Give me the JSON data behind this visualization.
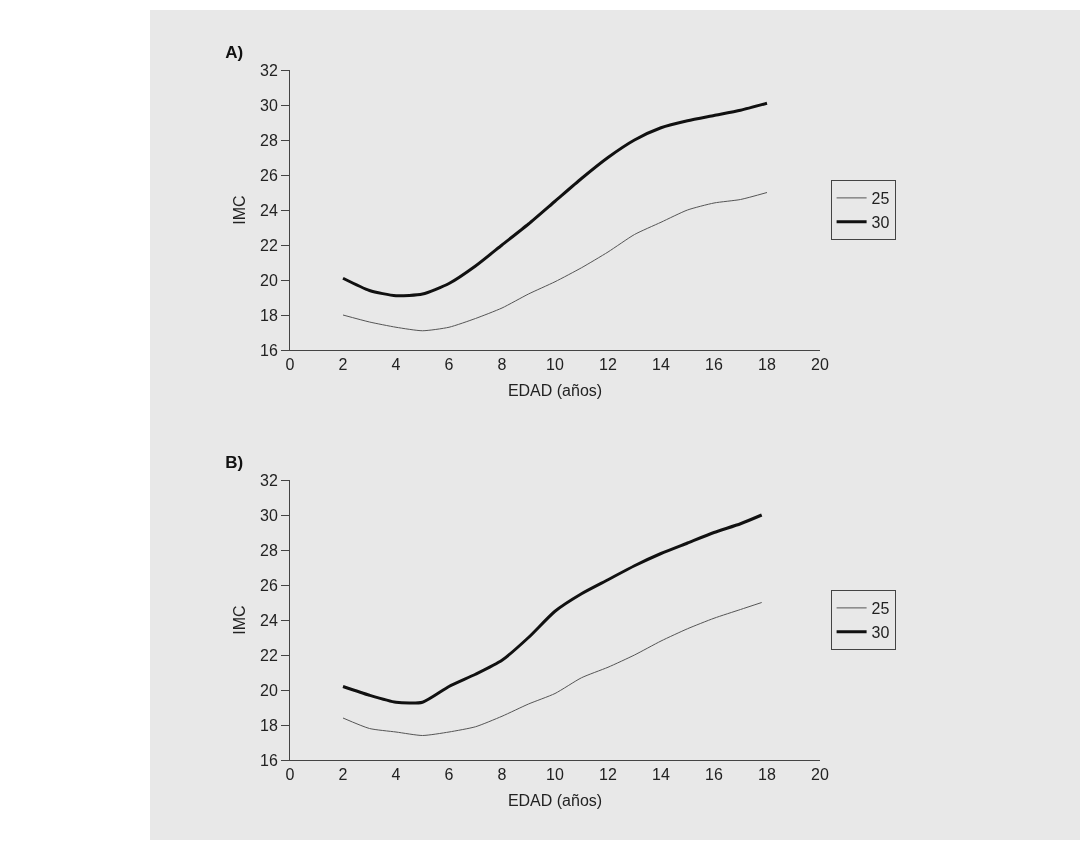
{
  "chart_data": [
    {
      "type": "line",
      "title": "A)",
      "xlabel": "EDAD (años)",
      "ylabel": "IMC",
      "x": [
        2,
        3,
        4,
        5,
        6,
        7,
        8,
        9,
        10,
        11,
        12,
        13,
        14,
        15,
        16,
        17,
        18
      ],
      "series": [
        {
          "name": "25",
          "color": "#555555",
          "values": [
            18.0,
            17.6,
            17.3,
            17.1,
            17.3,
            17.8,
            18.4,
            19.2,
            19.9,
            20.7,
            21.6,
            22.6,
            23.3,
            24.0,
            24.4,
            24.6,
            25.0
          ]
        },
        {
          "name": "30",
          "color": "#111111",
          "values": [
            20.1,
            19.4,
            19.1,
            19.2,
            19.8,
            20.8,
            22.0,
            23.2,
            24.5,
            25.8,
            27.0,
            28.0,
            28.7,
            29.1,
            29.4,
            29.7,
            30.1
          ]
        }
      ],
      "xlim": [
        0,
        20
      ],
      "xticks": [
        0,
        2,
        4,
        6,
        8,
        10,
        12,
        14,
        16,
        18,
        20
      ],
      "ylim": [
        16,
        32
      ],
      "yticks": [
        16,
        18,
        20,
        22,
        24,
        26,
        28,
        30,
        32
      ],
      "legend": "right"
    },
    {
      "type": "line",
      "title": "B)",
      "xlabel": "EDAD (años)",
      "ylabel": "IMC",
      "x": [
        2,
        3,
        4,
        5,
        6,
        7,
        8,
        9,
        10,
        11,
        12,
        13,
        14,
        15,
        16,
        17,
        17.8
      ],
      "series": [
        {
          "name": "25",
          "color": "#555555",
          "values": [
            18.4,
            17.8,
            17.6,
            17.4,
            17.6,
            17.9,
            18.5,
            19.2,
            19.8,
            20.7,
            21.3,
            22.0,
            22.8,
            23.5,
            24.1,
            24.6,
            25.0
          ]
        },
        {
          "name": "30",
          "color": "#111111",
          "values": [
            20.2,
            19.7,
            19.3,
            19.3,
            20.2,
            20.9,
            21.7,
            23.0,
            24.5,
            25.5,
            26.3,
            27.1,
            27.8,
            28.4,
            29.0,
            29.5,
            30.0
          ]
        }
      ],
      "xlim": [
        0,
        20
      ],
      "xticks": [
        0,
        2,
        4,
        6,
        8,
        10,
        12,
        14,
        16,
        18,
        20
      ],
      "ylim": [
        16,
        32
      ],
      "yticks": [
        16,
        18,
        20,
        22,
        24,
        26,
        28,
        30,
        32
      ],
      "legend": "right"
    }
  ]
}
